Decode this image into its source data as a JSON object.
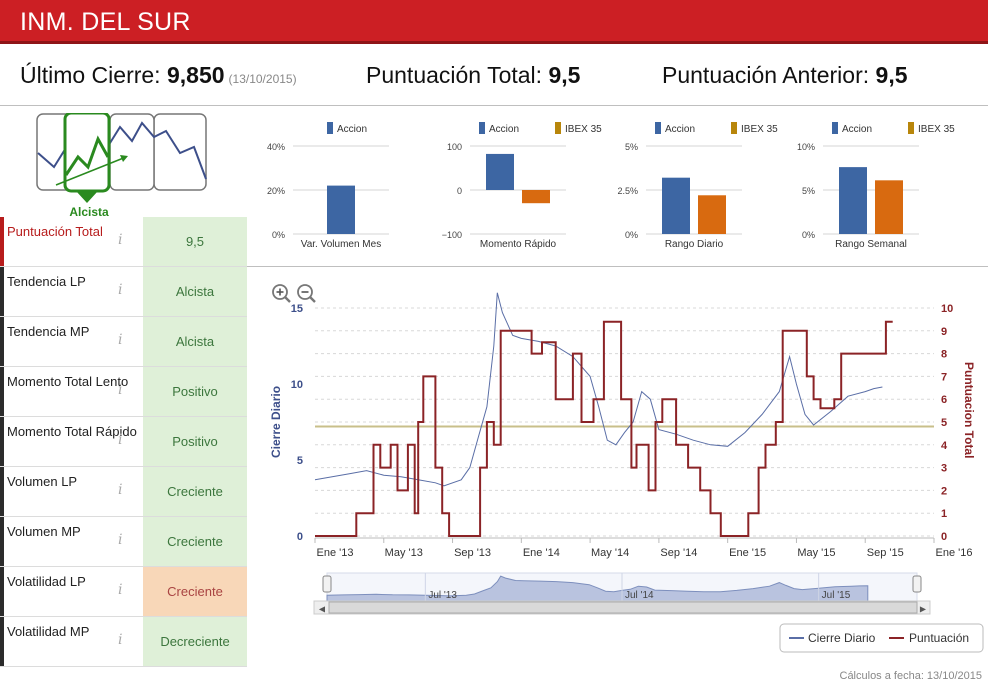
{
  "header": {
    "title": "INM. DEL SUR"
  },
  "summary": {
    "last_close_label": "Último Cierre:",
    "last_close_value": "9,850",
    "last_close_date": "(13/10/2015)",
    "total_label": "Puntuación Total:",
    "total_value": "9,5",
    "prev_label": "Puntuación Anterior:",
    "prev_value": "9,5"
  },
  "trend": {
    "label": "Alcista"
  },
  "indicators": [
    {
      "label": "Puntuación Total",
      "value": "9,5",
      "state": "good",
      "highlight": true
    },
    {
      "label": "Tendencia LP",
      "value": "Alcista",
      "state": "good"
    },
    {
      "label": "Tendencia MP",
      "value": "Alcista",
      "state": "good"
    },
    {
      "label": "Momento Total Lento",
      "value": "Positivo",
      "state": "good"
    },
    {
      "label": "Momento Total Rápido",
      "value": "Positivo",
      "state": "good"
    },
    {
      "label": "Volumen LP",
      "value": "Creciente",
      "state": "good"
    },
    {
      "label": "Volumen MP",
      "value": "Creciente",
      "state": "good"
    },
    {
      "label": "Volatilidad LP",
      "value": "Creciente",
      "state": "warn"
    },
    {
      "label": "Volatilidad MP",
      "value": "Decreciente",
      "state": "good"
    }
  ],
  "info_icon": "i",
  "colors": {
    "accion": "#3d66a3",
    "ibex": "#d86a10",
    "ibex_legend": "#b8860b",
    "score": "#8b2326",
    "close": "#5a6ea6",
    "threshold": "#c8bf8a"
  },
  "chart_data": [
    {
      "type": "bar",
      "title": "Var. Volumen Mes",
      "legend": [
        "Accion"
      ],
      "yticks": [
        "40%",
        "20%",
        "0%"
      ],
      "ylim": [
        0,
        40
      ],
      "series": [
        {
          "name": "Accion",
          "values": [
            22
          ]
        }
      ]
    },
    {
      "type": "bar",
      "title": "Momento Rápido",
      "legend": [
        "Accion",
        "IBEX 35"
      ],
      "yticks": [
        "100",
        "0",
        "−100"
      ],
      "ylim": [
        -100,
        100
      ],
      "series": [
        {
          "name": "Accion",
          "values": [
            82
          ]
        },
        {
          "name": "IBEX 35",
          "values": [
            -30
          ]
        }
      ]
    },
    {
      "type": "bar",
      "title": "Rango Diario",
      "legend": [
        "Accion",
        "IBEX 35"
      ],
      "yticks": [
        "5%",
        "2.5%",
        "0%"
      ],
      "ylim": [
        0,
        5
      ],
      "series": [
        {
          "name": "Accion",
          "values": [
            3.2
          ]
        },
        {
          "name": "IBEX 35",
          "values": [
            2.2
          ]
        }
      ]
    },
    {
      "type": "bar",
      "title": "Rango Semanal",
      "legend": [
        "Accion",
        "IBEX 35"
      ],
      "yticks": [
        "10%",
        "5%",
        "0%"
      ],
      "ylim": [
        0,
        10
      ],
      "series": [
        {
          "name": "Accion",
          "values": [
            7.6
          ]
        },
        {
          "name": "IBEX 35",
          "values": [
            6.1
          ]
        }
      ]
    },
    {
      "type": "line",
      "xlabels": [
        "Ene '13",
        "May '13",
        "Sep '13",
        "Ene '14",
        "May '14",
        "Sep '14",
        "Ene '15",
        "May '15",
        "Sep '15",
        "Ene '16"
      ],
      "ylabel_left": "Cierre Diario",
      "ylabel_right": "Puntuacion Total",
      "yticks_left": [
        "15",
        "10",
        "5",
        "0"
      ],
      "yticks_right": [
        "10",
        "9",
        "8",
        "7",
        "6",
        "5",
        "4",
        "3",
        "2",
        "1",
        "0"
      ],
      "ylim_left": [
        0,
        15
      ],
      "ylim_right": [
        0,
        10
      ],
      "xlim": [
        0,
        36
      ],
      "threshold": 4.8,
      "legend": [
        "Cierre Diario",
        "Puntuación"
      ],
      "navigator_labels": [
        "Jul '13",
        "Jul '14",
        "Jul '15"
      ],
      "close_series": [
        [
          0,
          3.7
        ],
        [
          1,
          3.9
        ],
        [
          2,
          4.1
        ],
        [
          3,
          4.3
        ],
        [
          4,
          4.0
        ],
        [
          5,
          3.9
        ],
        [
          6,
          3.7
        ],
        [
          7,
          3.5
        ],
        [
          7.5,
          3.3
        ],
        [
          8.5,
          3.7
        ],
        [
          9,
          4.5
        ],
        [
          9.5,
          6.5
        ],
        [
          10,
          8.5
        ],
        [
          10.4,
          12.5
        ],
        [
          10.6,
          16
        ],
        [
          10.9,
          14.7
        ],
        [
          11.5,
          13.2
        ],
        [
          12,
          13.0
        ],
        [
          13,
          12.8
        ],
        [
          14,
          12.5
        ],
        [
          15,
          11.8
        ],
        [
          16,
          10.5
        ],
        [
          16.5,
          8.5
        ],
        [
          17,
          6.3
        ],
        [
          17.5,
          6.0
        ],
        [
          18,
          6.8
        ],
        [
          18.5,
          7.5
        ],
        [
          19,
          9.5
        ],
        [
          19.5,
          9.0
        ],
        [
          20,
          7.0
        ],
        [
          21,
          6.7
        ],
        [
          22,
          6.3
        ],
        [
          23,
          6.0
        ],
        [
          24,
          5.9
        ],
        [
          25,
          6.8
        ],
        [
          26,
          8.0
        ],
        [
          27,
          9.5
        ],
        [
          27.6,
          11.8
        ],
        [
          28,
          10.0
        ],
        [
          28.5,
          8.0
        ],
        [
          29,
          7.3
        ],
        [
          30,
          8.2
        ],
        [
          31,
          9.2
        ],
        [
          32,
          9.5
        ],
        [
          32.5,
          9.7
        ],
        [
          33,
          9.8
        ]
      ],
      "score_series": [
        [
          0,
          0
        ],
        [
          2.4,
          0
        ],
        [
          2.4,
          1
        ],
        [
          3.4,
          1
        ],
        [
          3.4,
          4
        ],
        [
          3.8,
          4
        ],
        [
          3.8,
          3
        ],
        [
          4.4,
          3
        ],
        [
          4.4,
          4
        ],
        [
          4.8,
          4
        ],
        [
          4.8,
          2
        ],
        [
          5.4,
          2
        ],
        [
          5.4,
          4
        ],
        [
          5.8,
          4
        ],
        [
          5.8,
          1
        ],
        [
          6,
          1
        ],
        [
          6,
          5
        ],
        [
          6.3,
          5
        ],
        [
          6.3,
          7
        ],
        [
          7,
          7
        ],
        [
          7,
          3
        ],
        [
          7.4,
          3
        ],
        [
          7.4,
          1
        ],
        [
          7.8,
          1
        ],
        [
          7.8,
          0
        ],
        [
          9.6,
          0
        ],
        [
          9.6,
          3
        ],
        [
          10,
          3
        ],
        [
          10,
          5
        ],
        [
          10.4,
          5
        ],
        [
          10.4,
          4
        ],
        [
          10.8,
          4
        ],
        [
          10.8,
          9
        ],
        [
          12.6,
          9
        ],
        [
          12.6,
          8
        ],
        [
          13.2,
          8
        ],
        [
          13.2,
          8.5
        ],
        [
          14,
          8.5
        ],
        [
          14,
          6
        ],
        [
          15,
          6
        ],
        [
          15,
          8
        ],
        [
          15.5,
          8
        ],
        [
          15.5,
          5
        ],
        [
          16.2,
          5
        ],
        [
          16.2,
          6
        ],
        [
          16.8,
          6
        ],
        [
          16.8,
          9.4
        ],
        [
          17.8,
          9.4
        ],
        [
          17.8,
          6
        ],
        [
          18.4,
          6
        ],
        [
          18.4,
          3
        ],
        [
          18.7,
          3
        ],
        [
          18.7,
          4
        ],
        [
          19.4,
          4
        ],
        [
          19.4,
          2
        ],
        [
          19.8,
          2
        ],
        [
          19.8,
          5
        ],
        [
          20.2,
          5
        ],
        [
          20.2,
          6
        ],
        [
          21,
          6
        ],
        [
          21,
          4
        ],
        [
          21.7,
          4
        ],
        [
          21.7,
          3
        ],
        [
          22.4,
          3
        ],
        [
          22.4,
          2
        ],
        [
          23,
          2
        ],
        [
          23,
          1
        ],
        [
          23.6,
          1
        ],
        [
          23.6,
          0
        ],
        [
          25.2,
          0
        ],
        [
          25.2,
          1
        ],
        [
          25.8,
          1
        ],
        [
          25.8,
          3
        ],
        [
          26.2,
          3
        ],
        [
          26.2,
          4
        ],
        [
          26.8,
          4
        ],
        [
          26.8,
          5
        ],
        [
          27.2,
          5
        ],
        [
          27.2,
          9
        ],
        [
          28.6,
          9
        ],
        [
          28.6,
          7
        ],
        [
          29,
          7
        ],
        [
          29,
          6
        ],
        [
          29.4,
          6
        ],
        [
          29.4,
          5.6
        ],
        [
          30.2,
          5.6
        ],
        [
          30.2,
          6
        ],
        [
          30.6,
          6
        ],
        [
          30.6,
          8
        ],
        [
          33.2,
          8
        ],
        [
          33.2,
          9.4
        ],
        [
          33.6,
          9.4
        ]
      ]
    }
  ],
  "footer": {
    "calc_label": "Cálculos a fecha: 13/10/2015"
  }
}
